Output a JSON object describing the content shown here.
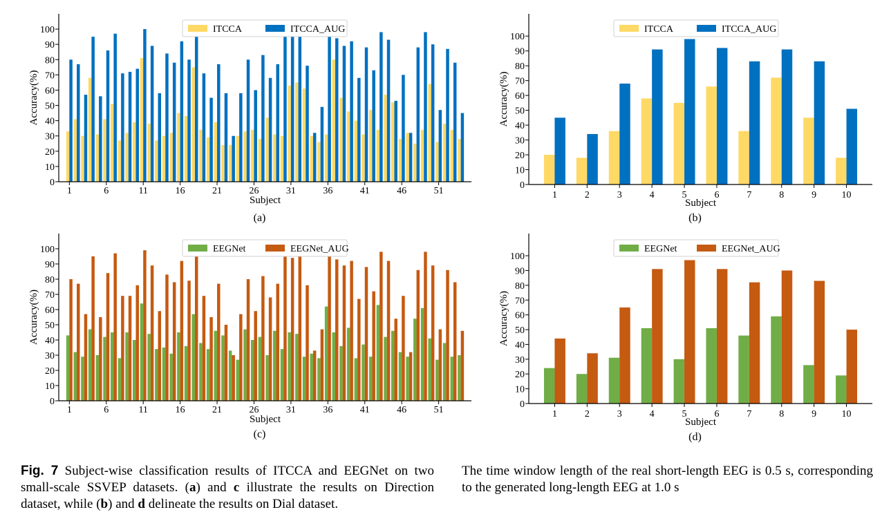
{
  "chart_data": [
    {
      "id": "a",
      "panel_label": "(a)",
      "type": "bar",
      "xlabel": "Subject",
      "ylabel": "Accuracy(%)",
      "ylim": [
        0,
        110
      ],
      "yticks": [
        0,
        10,
        20,
        30,
        40,
        50,
        60,
        70,
        80,
        90,
        100
      ],
      "xtick_labels": [
        "1",
        "6",
        "11",
        "16",
        "21",
        "26",
        "31",
        "36",
        "41",
        "46",
        "51"
      ],
      "xtick_start_index": 0,
      "xtick_step": 5,
      "legend_position": "top-center",
      "series": [
        {
          "name": "ITCCA",
          "color": "#FFD966",
          "values": [
            33,
            41,
            30,
            68,
            31,
            41,
            51,
            27,
            32,
            39,
            81,
            38,
            27,
            30,
            32,
            45,
            43,
            75,
            34,
            29,
            39,
            24,
            24,
            30,
            33,
            34,
            28,
            42,
            31,
            30,
            63,
            65,
            61,
            30,
            26,
            31,
            80,
            55,
            46,
            40,
            31,
            47,
            34,
            57,
            52,
            28,
            32,
            25,
            34,
            64,
            26,
            38,
            34,
            28
          ]
        },
        {
          "name": "ITCCA_AUG",
          "color": "#0070C0",
          "values": [
            80,
            77,
            57,
            95,
            56,
            86,
            97,
            71,
            72,
            74,
            100,
            89,
            58,
            84,
            78,
            92,
            80,
            96,
            71,
            55,
            77,
            58,
            30,
            58,
            80,
            60,
            83,
            68,
            77,
            97,
            95,
            97,
            76,
            32,
            49,
            100,
            94,
            89,
            92,
            68,
            88,
            73,
            98,
            93,
            53,
            70,
            32,
            88,
            98,
            90,
            47,
            87,
            78,
            45
          ]
        }
      ]
    },
    {
      "id": "b",
      "panel_label": "(b)",
      "type": "bar",
      "xlabel": "Subject",
      "ylabel": "Accuracy(%)",
      "ylim": [
        0,
        115
      ],
      "yticks": [
        0,
        10,
        20,
        30,
        40,
        50,
        60,
        70,
        80,
        90,
        100
      ],
      "categories": [
        "1",
        "2",
        "3",
        "4",
        "5",
        "6",
        "7",
        "8",
        "9",
        "10"
      ],
      "legend_position": "top-center",
      "series": [
        {
          "name": "ITCCA",
          "color": "#FFD966",
          "values": [
            20,
            18,
            36,
            58,
            55,
            66,
            36,
            72,
            45,
            18
          ]
        },
        {
          "name": "ITCCA_AUG",
          "color": "#0070C0",
          "values": [
            45,
            34,
            68,
            91,
            98,
            92,
            83,
            91,
            83,
            51
          ]
        }
      ]
    },
    {
      "id": "c",
      "panel_label": "(c)",
      "type": "bar",
      "xlabel": "Subject",
      "ylabel": "Accuracy(%)",
      "ylim": [
        0,
        110
      ],
      "yticks": [
        0,
        10,
        20,
        30,
        40,
        50,
        60,
        70,
        80,
        90,
        100
      ],
      "xtick_labels": [
        "1",
        "6",
        "11",
        "16",
        "21",
        "26",
        "31",
        "36",
        "41",
        "46",
        "51"
      ],
      "xtick_start_index": 0,
      "xtick_step": 5,
      "legend_position": "top-center",
      "series": [
        {
          "name": "EEGNet",
          "color": "#70AD47",
          "values": [
            43,
            32,
            29,
            47,
            30,
            42,
            45,
            28,
            45,
            40,
            64,
            44,
            34,
            35,
            31,
            45,
            36,
            57,
            38,
            34,
            46,
            43,
            33,
            27,
            47,
            40,
            42,
            30,
            46,
            34,
            45,
            44,
            29,
            31,
            28,
            62,
            45,
            36,
            48,
            28,
            37,
            29,
            63,
            42,
            46,
            32,
            29,
            54,
            61,
            41,
            27,
            38,
            29,
            30
          ]
        },
        {
          "name": "EEGNet_AUG",
          "color": "#C55A11",
          "values": [
            80,
            77,
            57,
            95,
            55,
            84,
            97,
            69,
            69,
            76,
            99,
            89,
            59,
            83,
            78,
            92,
            79,
            96,
            69,
            55,
            77,
            50,
            30,
            57,
            80,
            59,
            82,
            68,
            77,
            97,
            94,
            97,
            76,
            33,
            47,
            100,
            93,
            89,
            92,
            67,
            88,
            72,
            98,
            92,
            54,
            69,
            32,
            86,
            98,
            89,
            47,
            86,
            78,
            46
          ]
        }
      ]
    },
    {
      "id": "d",
      "panel_label": "(d)",
      "type": "bar",
      "xlabel": "Subject",
      "ylabel": "Accuracy(%)",
      "ylim": [
        0,
        115
      ],
      "yticks": [
        0,
        10,
        20,
        30,
        40,
        50,
        60,
        70,
        80,
        90,
        100
      ],
      "categories": [
        "1",
        "2",
        "3",
        "4",
        "5",
        "6",
        "7",
        "8",
        "9",
        "10"
      ],
      "legend_position": "top-center",
      "series": [
        {
          "name": "EEGNet",
          "color": "#70AD47",
          "values": [
            24,
            20,
            31,
            51,
            30,
            51,
            46,
            59,
            26,
            19
          ]
        },
        {
          "name": "EEGNet_AUG",
          "color": "#C55A11",
          "values": [
            44,
            34,
            65,
            91,
            97,
            91,
            82,
            90,
            83,
            50
          ]
        }
      ]
    }
  ],
  "caption": {
    "fig_label": "Fig. 7",
    "part1": " Subject-wise classification results of ITCCA and EEGNet on two small-scale SSVEP datasets. (",
    "bold_a": "a",
    "part2": ") and ",
    "bold_c": "c",
    "part3": " illustrate the results on Direction dataset, while (",
    "bold_b": "b",
    "part4": ") and ",
    "bold_d": "d",
    "part5": " delineate the results on Dial dataset.",
    "right_text": "The time window length of the real short-length EEG is 0.5 s, corresponding to the generated long-length EEG at 1.0 s"
  }
}
